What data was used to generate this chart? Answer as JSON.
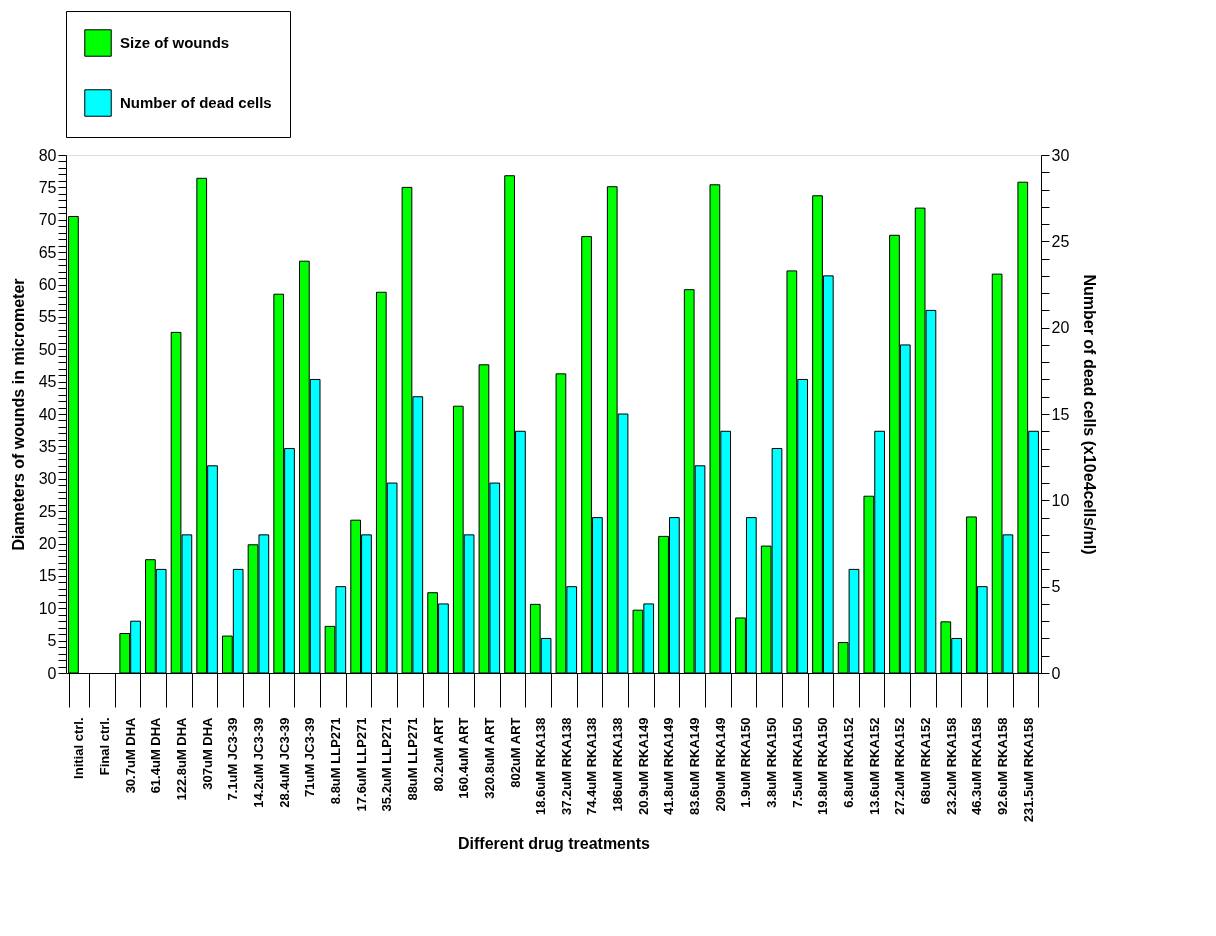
{
  "chart_data": {
    "type": "bar",
    "xlabel": "Different drug treatments",
    "ylabel": "Diameters of wounds in micrometer",
    "y2label": "Number of dead cells (x10e4cells/ml)",
    "categories": [
      "Initial ctrl.",
      "Final ctrl.",
      "30.7uM DHA",
      "61.4uM DHA",
      "122.8uM DHA",
      "307uM DHA",
      "7.1uM JC3-39",
      "14.2uM JC3-39",
      "28.4uM JC3-39",
      "71uM JC3-39",
      "8.8uM LLP271",
      "17.6uM LLP271",
      "35.2uM LLP271",
      "88uM LLP271",
      "80.2uM ART",
      "160.4uM ART",
      "320.8uM ART",
      "802uM ART",
      "18.6uM RKA138",
      "37.2uM RKA138",
      "74.4uM RKA138",
      "186uM RKA138",
      "20.9uM RKA149",
      "41.8uM RKA149",
      "83.6uM RKA149",
      "209uM RKA149",
      "1.9uM RKA150",
      "3.8uM RKA150",
      "7.5uM RKA150",
      "19.8uM RKA150",
      "6.8uM RKA152",
      "13.6uM RKA152",
      "27.2uM RKA152",
      "68uM RKA152",
      "23.2uM RKA158",
      "46.3uM RKA158",
      "92.6uM RKA158",
      "231.5uM RKA158"
    ],
    "series": [
      {
        "name": "Size of wounds",
        "color": "#00ff00",
        "values": [
          70.5,
          null,
          6.1,
          17.5,
          52.6,
          76.4,
          5.7,
          19.8,
          58.5,
          63.6,
          7.2,
          23.6,
          58.8,
          75.0,
          12.4,
          41.2,
          47.6,
          76.8,
          10.6,
          46.2,
          67.4,
          75.1,
          9.7,
          21.1,
          59.2,
          75.4,
          8.5,
          19.6,
          62.1,
          73.7,
          4.7,
          27.3,
          67.6,
          71.8,
          7.9,
          24.1,
          61.6,
          75.8
        ]
      },
      {
        "name": "Number of dead cells",
        "color": "#00ffff",
        "axis": "y2",
        "values": [
          null,
          null,
          3,
          6,
          8,
          12,
          6,
          8,
          13,
          17,
          5,
          8,
          11,
          16,
          4,
          8,
          11,
          14,
          2,
          5,
          9,
          15,
          4,
          9,
          12,
          14,
          9,
          13,
          17,
          23,
          6,
          14,
          19,
          21,
          2,
          5,
          8,
          14
        ]
      }
    ],
    "ylim": [
      0,
      80
    ],
    "yticks": [
      0,
      {
        "value": 1,
        "label": null
      },
      {
        "value": 2,
        "label": null
      },
      {
        "value": 3,
        "label": null
      },
      {
        "value": 4,
        "label": null
      },
      5,
      {
        "value": 6,
        "label": null
      },
      {
        "value": 7,
        "label": null
      },
      {
        "value": 8,
        "label": null
      },
      {
        "value": 9,
        "label": null
      },
      10,
      {
        "value": 11,
        "label": null
      },
      {
        "value": 12,
        "label": null
      },
      {
        "value": 13,
        "label": null
      },
      {
        "value": 14,
        "label": null
      },
      15,
      {
        "value": 16,
        "label": null
      },
      {
        "value": 17,
        "label": null
      },
      {
        "value": 18,
        "label": null
      },
      {
        "value": 19,
        "label": null
      },
      20,
      {
        "value": 21,
        "label": null
      },
      {
        "value": 22,
        "label": null
      },
      {
        "value": 23,
        "label": null
      },
      {
        "value": 24,
        "label": null
      },
      25,
      {
        "value": 26,
        "label": null
      },
      {
        "value": 27,
        "label": null
      },
      {
        "value": 28,
        "label": null
      },
      {
        "value": 29,
        "label": null
      },
      30,
      {
        "value": 31,
        "label": null
      },
      {
        "value": 32,
        "label": null
      },
      {
        "value": 33,
        "label": null
      },
      {
        "value": 34,
        "label": null
      },
      35,
      {
        "value": 36,
        "label": null
      },
      {
        "value": 37,
        "label": null
      },
      {
        "value": 38,
        "label": null
      },
      {
        "value": 39,
        "label": null
      },
      40,
      {
        "value": 41,
        "label": null
      },
      {
        "value": 42,
        "label": null
      },
      {
        "value": 43,
        "label": null
      },
      {
        "value": 44,
        "label": null
      },
      45,
      {
        "value": 46,
        "label": null
      },
      {
        "value": 47,
        "label": null
      },
      {
        "value": 48,
        "label": null
      },
      {
        "value": 49,
        "label": null
      },
      50,
      {
        "value": 51,
        "label": null
      },
      {
        "value": 52,
        "label": null
      },
      {
        "value": 53,
        "label": null
      },
      {
        "value": 54,
        "label": null
      },
      55,
      {
        "value": 56,
        "label": null
      },
      {
        "value": 57,
        "label": null
      },
      {
        "value": 58,
        "label": null
      },
      {
        "value": 59,
        "label": null
      },
      60,
      {
        "value": 61,
        "label": null
      },
      {
        "value": 62,
        "label": null
      },
      {
        "value": 63,
        "label": null
      },
      {
        "value": 64,
        "label": null
      },
      65,
      {
        "value": 66,
        "label": null
      },
      {
        "value": 67,
        "label": null
      },
      {
        "value": 68,
        "label": null
      },
      {
        "value": 69,
        "label": null
      },
      70,
      {
        "value": 71,
        "label": null
      },
      {
        "value": 72,
        "label": null
      },
      {
        "value": 73,
        "label": null
      },
      {
        "value": 74,
        "label": null
      },
      75,
      {
        "value": 76,
        "label": null
      },
      {
        "value": 77,
        "label": null
      },
      {
        "value": 78,
        "label": null
      },
      {
        "value": 79,
        "label": null
      },
      80
    ],
    "y2lim": [
      0,
      30
    ],
    "y2ticks": [
      0,
      {
        "value": 1,
        "label": null
      },
      {
        "value": 2,
        "label": null
      },
      {
        "value": 3,
        "label": null
      },
      {
        "value": 4,
        "label": null
      },
      5,
      {
        "value": 6,
        "label": null
      },
      {
        "value": 7,
        "label": null
      },
      {
        "value": 8,
        "label": null
      },
      {
        "value": 9,
        "label": null
      },
      10,
      {
        "value": 11,
        "label": null
      },
      {
        "value": 12,
        "label": null
      },
      {
        "value": 13,
        "label": null
      },
      {
        "value": 14,
        "label": null
      },
      15,
      {
        "value": 16,
        "label": null
      },
      {
        "value": 17,
        "label": null
      },
      {
        "value": 18,
        "label": null
      },
      {
        "value": 19,
        "label": null
      },
      20,
      {
        "value": 21,
        "label": null
      },
      {
        "value": 22,
        "label": null
      },
      {
        "value": 23,
        "label": null
      },
      {
        "value": 24,
        "label": null
      },
      25,
      {
        "value": 26,
        "label": null
      },
      {
        "value": 27,
        "label": null
      },
      {
        "value": 28,
        "label": null
      },
      {
        "value": 29,
        "label": null
      },
      30
    ],
    "grid": false,
    "legend": "top"
  }
}
